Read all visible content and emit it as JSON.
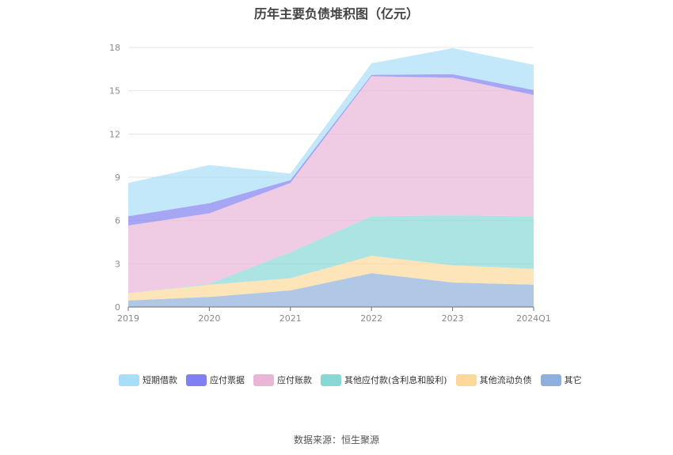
{
  "title": "历年主要负债堆积图（亿元）",
  "source": "数据来源：恒生聚源",
  "chart_data": {
    "type": "area",
    "stacked": true,
    "categories": [
      "2019",
      "2020",
      "2021",
      "2022",
      "2023",
      "2024Q1"
    ],
    "y_ticks": [
      "0",
      "3",
      "6",
      "9",
      "12",
      "15",
      "18"
    ],
    "ylim": [
      0,
      18
    ],
    "grid": true,
    "legend_position": "bottom",
    "series": [
      {
        "name": "其它",
        "color": "#8fb0dc",
        "values": [
          0.45,
          0.7,
          1.15,
          2.35,
          1.7,
          1.55
        ]
      },
      {
        "name": "其他流动负债",
        "color": "#fcd99b",
        "values": [
          0.5,
          0.85,
          0.85,
          1.2,
          1.2,
          1.1
        ]
      },
      {
        "name": "其他应付款(含利息和股利)",
        "color": "#88d8d5",
        "values": [
          0.0,
          0.05,
          1.8,
          2.75,
          3.45,
          3.65
        ]
      },
      {
        "name": "应付账款",
        "color": "#eab6d8",
        "values": [
          4.7,
          4.9,
          4.8,
          9.7,
          9.55,
          8.4
        ]
      },
      {
        "name": "应付票据",
        "color": "#8080f0",
        "values": [
          0.65,
          0.7,
          0.2,
          0.1,
          0.25,
          0.35
        ]
      },
      {
        "name": "短期借款",
        "color": "#a9def8",
        "values": [
          2.3,
          2.65,
          0.45,
          0.8,
          1.8,
          1.75
        ]
      }
    ],
    "legend_order": [
      "短期借款",
      "应付票据",
      "应付账款",
      "其他应付款(含利息和股利)",
      "其他流动负债",
      "其它"
    ]
  }
}
